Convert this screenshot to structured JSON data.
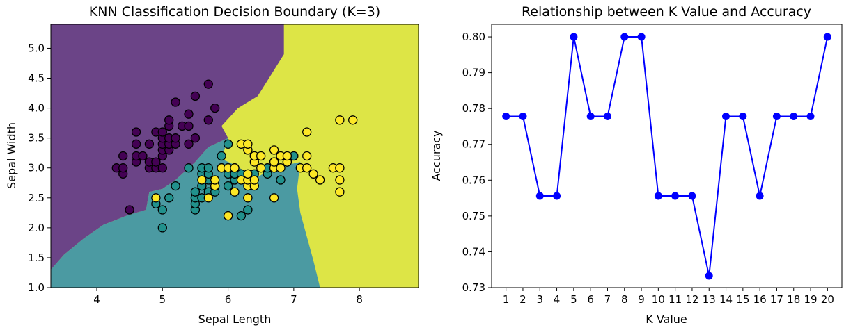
{
  "chart_data": [
    {
      "type": "scatter",
      "title": "KNN Classification Decision Boundary (K=3)",
      "xlabel": "Sepal Length",
      "ylabel": "Sepal Width",
      "xlim": [
        3.3,
        8.9
      ],
      "ylim": [
        1.0,
        5.4
      ],
      "xticks": [
        "4",
        "5",
        "6",
        "7",
        "8"
      ],
      "yticks": [
        "1.0",
        "1.5",
        "2.0",
        "2.5",
        "3.0",
        "3.5",
        "4.0",
        "4.5",
        "5.0"
      ],
      "region_colors": {
        "setosa": "#6b4487",
        "versicolor": "#4b9aa2",
        "virginica": "#dde546"
      },
      "class_colors": {
        "setosa": "#440154",
        "versicolor": "#21918c",
        "virginica": "#fde725"
      },
      "boundaries": {
        "setosa_versicolor": [
          [
            3.3,
            1.3
          ],
          [
            3.5,
            1.55
          ],
          [
            3.8,
            1.82
          ],
          [
            4.1,
            2.05
          ],
          [
            4.45,
            2.2
          ],
          [
            4.75,
            2.3
          ],
          [
            4.8,
            2.6
          ],
          [
            5.0,
            2.65
          ],
          [
            5.2,
            2.8
          ],
          [
            5.5,
            3.1
          ],
          [
            5.7,
            3.35
          ],
          [
            5.9,
            3.45
          ],
          [
            6.0,
            3.5
          ]
        ],
        "setosa_virginica": [
          [
            6.0,
            3.5
          ],
          [
            5.9,
            3.7
          ],
          [
            6.15,
            4.0
          ],
          [
            6.45,
            4.2
          ],
          [
            6.65,
            4.55
          ],
          [
            6.85,
            4.9
          ],
          [
            6.85,
            5.4
          ]
        ],
        "versicolor_virginica": [
          [
            6.0,
            3.5
          ],
          [
            5.9,
            3.15
          ],
          [
            6.1,
            3.05
          ],
          [
            6.25,
            2.95
          ],
          [
            6.45,
            2.85
          ],
          [
            6.7,
            3.0
          ],
          [
            6.9,
            3.05
          ],
          [
            7.1,
            3.1
          ],
          [
            7.05,
            2.65
          ],
          [
            7.1,
            2.25
          ],
          [
            7.2,
            1.85
          ],
          [
            7.3,
            1.45
          ],
          [
            7.4,
            1.0
          ]
        ]
      },
      "series": [
        {
          "name": "setosa",
          "points": [
            [
              4.3,
              3.0
            ],
            [
              4.4,
              2.9
            ],
            [
              4.4,
              3.0
            ],
            [
              4.4,
              3.2
            ],
            [
              4.5,
              2.3
            ],
            [
              4.6,
              3.1
            ],
            [
              4.6,
              3.2
            ],
            [
              4.6,
              3.4
            ],
            [
              4.6,
              3.6
            ],
            [
              4.7,
              3.2
            ],
            [
              4.8,
              3.0
            ],
            [
              4.8,
              3.1
            ],
            [
              4.8,
              3.4
            ],
            [
              4.9,
              3.0
            ],
            [
              4.9,
              3.1
            ],
            [
              4.9,
              3.6
            ],
            [
              5.0,
              3.0
            ],
            [
              5.0,
              3.2
            ],
            [
              5.0,
              3.3
            ],
            [
              5.0,
              3.4
            ],
            [
              5.0,
              3.5
            ],
            [
              5.0,
              3.6
            ],
            [
              5.1,
              3.3
            ],
            [
              5.1,
              3.4
            ],
            [
              5.1,
              3.5
            ],
            [
              5.1,
              3.7
            ],
            [
              5.1,
              3.8
            ],
            [
              5.2,
              3.4
            ],
            [
              5.2,
              3.5
            ],
            [
              5.2,
              4.1
            ],
            [
              5.3,
              3.7
            ],
            [
              5.4,
              3.4
            ],
            [
              5.4,
              3.7
            ],
            [
              5.4,
              3.9
            ],
            [
              5.5,
              3.5
            ],
            [
              5.5,
              4.2
            ],
            [
              5.7,
              3.8
            ],
            [
              5.7,
              4.4
            ],
            [
              5.8,
              4.0
            ]
          ]
        },
        {
          "name": "versicolor",
          "points": [
            [
              4.9,
              2.4
            ],
            [
              5.0,
              2.0
            ],
            [
              5.0,
              2.3
            ],
            [
              5.1,
              2.5
            ],
            [
              5.2,
              2.7
            ],
            [
              5.4,
              3.0
            ],
            [
              5.5,
              2.3
            ],
            [
              5.5,
              2.4
            ],
            [
              5.5,
              2.5
            ],
            [
              5.5,
              2.6
            ],
            [
              5.6,
              2.5
            ],
            [
              5.6,
              2.7
            ],
            [
              5.6,
              2.9
            ],
            [
              5.6,
              3.0
            ],
            [
              5.7,
              2.6
            ],
            [
              5.7,
              2.8
            ],
            [
              5.7,
              2.9
            ],
            [
              5.7,
              3.0
            ],
            [
              5.8,
              2.6
            ],
            [
              5.8,
              2.7
            ],
            [
              5.9,
              3.0
            ],
            [
              5.9,
              3.2
            ],
            [
              6.0,
              2.2
            ],
            [
              6.0,
              2.7
            ],
            [
              6.0,
              2.9
            ],
            [
              6.0,
              3.4
            ],
            [
              6.1,
              2.8
            ],
            [
              6.1,
              2.9
            ],
            [
              6.1,
              3.0
            ],
            [
              6.2,
              2.2
            ],
            [
              6.2,
              2.9
            ],
            [
              6.3,
              2.3
            ],
            [
              6.3,
              2.5
            ],
            [
              6.3,
              3.3
            ],
            [
              6.4,
              2.9
            ],
            [
              6.4,
              3.2
            ],
            [
              6.6,
              2.9
            ],
            [
              6.6,
              3.0
            ],
            [
              6.7,
              3.0
            ],
            [
              6.7,
              3.1
            ],
            [
              6.8,
              2.8
            ],
            [
              6.9,
              3.1
            ],
            [
              7.0,
              3.2
            ]
          ]
        },
        {
          "name": "virginica",
          "points": [
            [
              4.9,
              2.5
            ],
            [
              5.6,
              2.8
            ],
            [
              5.7,
              2.5
            ],
            [
              5.8,
              2.7
            ],
            [
              5.8,
              2.8
            ],
            [
              5.9,
              3.0
            ],
            [
              6.0,
              2.2
            ],
            [
              6.0,
              3.0
            ],
            [
              6.1,
              2.6
            ],
            [
              6.1,
              3.0
            ],
            [
              6.2,
              2.8
            ],
            [
              6.2,
              3.4
            ],
            [
              6.3,
              2.5
            ],
            [
              6.3,
              2.7
            ],
            [
              6.3,
              2.8
            ],
            [
              6.3,
              2.9
            ],
            [
              6.3,
              3.3
            ],
            [
              6.3,
              3.4
            ],
            [
              6.4,
              2.7
            ],
            [
              6.4,
              2.8
            ],
            [
              6.4,
              3.1
            ],
            [
              6.4,
              3.2
            ],
            [
              6.5,
              3.0
            ],
            [
              6.5,
              3.2
            ],
            [
              6.7,
              2.5
            ],
            [
              6.7,
              3.0
            ],
            [
              6.7,
              3.1
            ],
            [
              6.7,
              3.3
            ],
            [
              6.8,
              3.0
            ],
            [
              6.8,
              3.2
            ],
            [
              6.9,
              3.1
            ],
            [
              6.9,
              3.2
            ],
            [
              7.1,
              3.0
            ],
            [
              7.2,
              3.0
            ],
            [
              7.2,
              3.2
            ],
            [
              7.2,
              3.6
            ],
            [
              7.3,
              2.9
            ],
            [
              7.4,
              2.8
            ],
            [
              7.6,
              3.0
            ],
            [
              7.7,
              2.6
            ],
            [
              7.7,
              2.8
            ],
            [
              7.7,
              3.0
            ],
            [
              7.7,
              3.8
            ],
            [
              7.9,
              3.8
            ]
          ]
        }
      ]
    },
    {
      "type": "line",
      "title": "Relationship between K Value and Accuracy",
      "xlabel": "K Value",
      "ylabel": "Accuracy",
      "xlim": [
        0.15,
        20.85
      ],
      "ylim": [
        0.73,
        0.8035
      ],
      "xticks": [
        "1",
        "2",
        "3",
        "4",
        "5",
        "6",
        "7",
        "8",
        "9",
        "10",
        "11",
        "12",
        "13",
        "14",
        "15",
        "16",
        "17",
        "18",
        "19",
        "20"
      ],
      "yticks": [
        "0.73",
        "0.74",
        "0.75",
        "0.76",
        "0.77",
        "0.78",
        "0.79",
        "0.80"
      ],
      "color": "#0000ff",
      "x": [
        1,
        2,
        3,
        4,
        5,
        6,
        7,
        8,
        9,
        10,
        11,
        12,
        13,
        14,
        15,
        16,
        17,
        18,
        19,
        20
      ],
      "values": [
        0.7778,
        0.7778,
        0.7556,
        0.7556,
        0.8,
        0.7778,
        0.7778,
        0.8,
        0.8,
        0.7556,
        0.7556,
        0.7556,
        0.7333,
        0.7778,
        0.7778,
        0.7556,
        0.7778,
        0.7778,
        0.7778,
        0.8
      ]
    }
  ]
}
